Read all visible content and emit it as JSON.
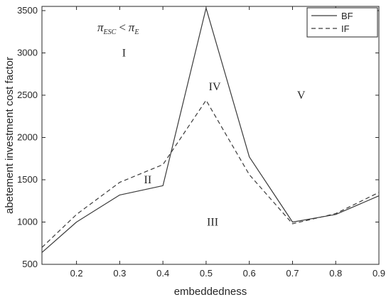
{
  "chart_data": {
    "type": "line",
    "xlabel": "embeddedness",
    "ylabel": "abetement investment cost factor",
    "xlim": [
      0.12,
      0.9
    ],
    "ylim": [
      500,
      3550
    ],
    "xticks": [
      0.2,
      0.3,
      0.4,
      0.5,
      0.6,
      0.7,
      0.8,
      0.9
    ],
    "xtick_labels": [
      "0.2",
      "0.3",
      "0.4",
      "0.5",
      "0.6",
      "0.7",
      "0.8",
      "0.9"
    ],
    "yticks": [
      500,
      1000,
      1500,
      2000,
      2500,
      3000,
      3500
    ],
    "ytick_labels": [
      "500",
      "1000",
      "1500",
      "2000",
      "2500",
      "3000",
      "3500"
    ],
    "grid": false,
    "legend_position": "top-right",
    "series": [
      {
        "name": "BF",
        "style": "solid",
        "color": "#3a3a3a",
        "x": [
          0.12,
          0.2,
          0.3,
          0.4,
          0.5,
          0.6,
          0.7,
          0.8,
          0.9
        ],
        "y": [
          640,
          1000,
          1320,
          1430,
          3530,
          1770,
          1000,
          1090,
          1310
        ]
      },
      {
        "name": "IF",
        "style": "dashed",
        "color": "#3a3a3a",
        "x": [
          0.12,
          0.2,
          0.3,
          0.4,
          0.5,
          0.6,
          0.7,
          0.8,
          0.9
        ],
        "y": [
          700,
          1090,
          1470,
          1680,
          2440,
          1560,
          980,
          1100,
          1350
        ]
      }
    ],
    "annotations": {
      "condition": {
        "pi1": "π",
        "sub1": "ESC",
        "op": "<",
        "pi2": "π",
        "sub2": "E"
      },
      "regions": [
        {
          "label": "I",
          "x": 0.31,
          "y": 3000
        },
        {
          "label": "II",
          "x": 0.365,
          "y": 1500
        },
        {
          "label": "III",
          "x": 0.515,
          "y": 1000
        },
        {
          "label": "IV",
          "x": 0.52,
          "y": 2600
        },
        {
          "label": "V",
          "x": 0.72,
          "y": 2500
        }
      ]
    }
  }
}
